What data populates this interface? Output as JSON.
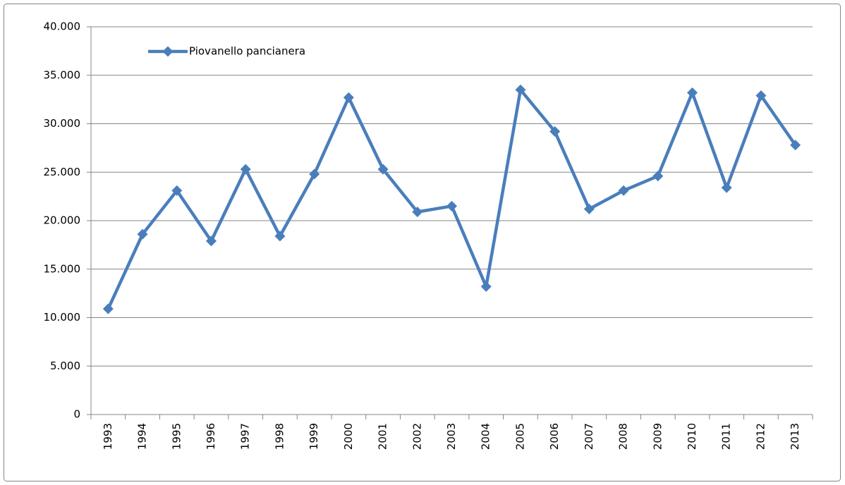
{
  "chart_data": {
    "type": "line",
    "categories": [
      "1993",
      "1994",
      "1995",
      "1996",
      "1997",
      "1998",
      "1999",
      "2000",
      "2001",
      "2002",
      "2003",
      "2004",
      "2005",
      "2006",
      "2007",
      "2008",
      "2009",
      "2010",
      "2011",
      "2012",
      "2013"
    ],
    "series": [
      {
        "name": "Piovanello pancianera",
        "color": "#4a7ebb",
        "values": [
          10900,
          18600,
          23100,
          17900,
          25300,
          18400,
          24800,
          32700,
          25300,
          20900,
          21500,
          13200,
          33500,
          29200,
          21200,
          23100,
          24600,
          33200,
          23400,
          32900,
          27800
        ]
      }
    ],
    "ylim": [
      0,
      40000
    ],
    "yticks": [
      0,
      {
        "value": 5000,
        "label": "5.000"
      },
      {
        "value": 10000,
        "label": "10.000"
      },
      {
        "value": 15000,
        "label": "15.000"
      },
      {
        "value": 20000,
        "label": "20.000"
      },
      {
        "value": 25000,
        "label": "25.000"
      },
      {
        "value": 30000,
        "label": "30.000"
      },
      {
        "value": 35000,
        "label": "35.000"
      },
      {
        "value": 40000,
        "label": "40.000"
      }
    ],
    "grid": true,
    "legend": "upper left"
  }
}
